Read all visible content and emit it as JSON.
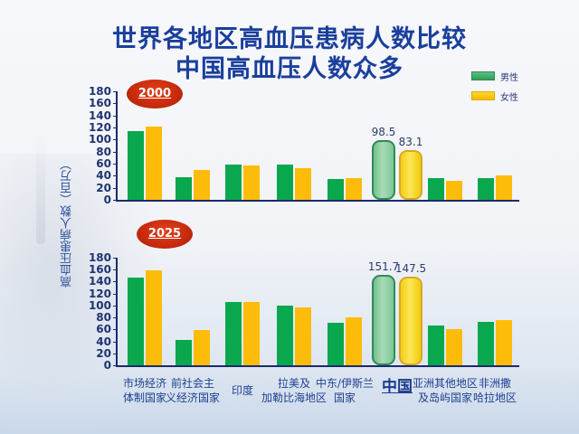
{
  "title": {
    "line1": "世界各地区高血压患病人数比较",
    "line2": "中国高血压人数众多"
  },
  "legend": [
    {
      "label": "男性",
      "color": "#0aa84e"
    },
    {
      "label": "女性",
      "color": "#fdbc0a"
    }
  ],
  "ylabel": "高血压患病人数（百万）",
  "yticks": [
    "180",
    "160",
    "140",
    "120",
    "100",
    "80",
    "60",
    "40",
    "20",
    "0"
  ],
  "panels": [
    {
      "badge": "2000",
      "china_labels": {
        "male": "98.5",
        "female": "83.1"
      }
    },
    {
      "badge": "2025",
      "china_labels": {
        "male": "151.7",
        "female": "147.5"
      }
    }
  ],
  "categories": [
    {
      "line1": "市场经济",
      "line2": "体制国家"
    },
    {
      "line1": "前社会主",
      "line2": "义经济国家"
    },
    {
      "line1": "印度",
      "line2": ""
    },
    {
      "line1": "拉美及",
      "line2": "加勒比海地区"
    },
    {
      "line1": "中东/伊斯兰",
      "line2": "国家"
    },
    {
      "line1": "中国",
      "line2": ""
    },
    {
      "line1": "亚洲其他地区",
      "line2": "及岛屿国家"
    },
    {
      "line1": "非洲撒",
      "line2": "哈拉地区"
    }
  ],
  "colors": {
    "male": "#0aa84e",
    "female": "#fdbc0a",
    "title": "#1a3f9c",
    "badge": "#c72a0c"
  },
  "chart_data": [
    {
      "type": "bar",
      "title": "2000",
      "xlabel": "",
      "ylabel": "高血压患病人数（百万）",
      "ylim": [
        0,
        180
      ],
      "categories": [
        "市场经济体制国家",
        "前社会主义经济国家",
        "印度",
        "拉美及加勒比海地区",
        "中东/伊斯兰国家",
        "中国",
        "亚洲其他地区及岛屿国家",
        "非洲撒哈拉地区"
      ],
      "series": [
        {
          "name": "男性",
          "values": [
            114,
            38,
            59,
            58,
            34,
            98.5,
            36,
            36
          ]
        },
        {
          "name": "女性",
          "values": [
            121,
            50,
            57,
            52,
            36,
            83.1,
            31,
            40
          ]
        }
      ],
      "annotations": [
        "98.5",
        "83.1"
      ],
      "legend_position": "top-right",
      "grid": false
    },
    {
      "type": "bar",
      "title": "2025",
      "xlabel": "",
      "ylabel": "高血压患病人数（百万）",
      "ylim": [
        0,
        180
      ],
      "categories": [
        "市场经济体制国家",
        "前社会主义经济国家",
        "印度",
        "拉美及加勒比海地区",
        "中东/伊斯兰国家",
        "中国",
        "亚洲其他地区及岛屿国家",
        "非洲撒哈拉地区"
      ],
      "series": [
        {
          "name": "男性",
          "values": [
            147,
            43,
            106,
            100,
            71,
            151.7,
            67,
            73
          ]
        },
        {
          "name": "女性",
          "values": [
            159,
            59,
            106,
            97,
            80,
            147.5,
            61,
            76
          ]
        }
      ],
      "annotations": [
        "151.7",
        "147.5"
      ],
      "legend_position": "top-right",
      "grid": false
    }
  ]
}
